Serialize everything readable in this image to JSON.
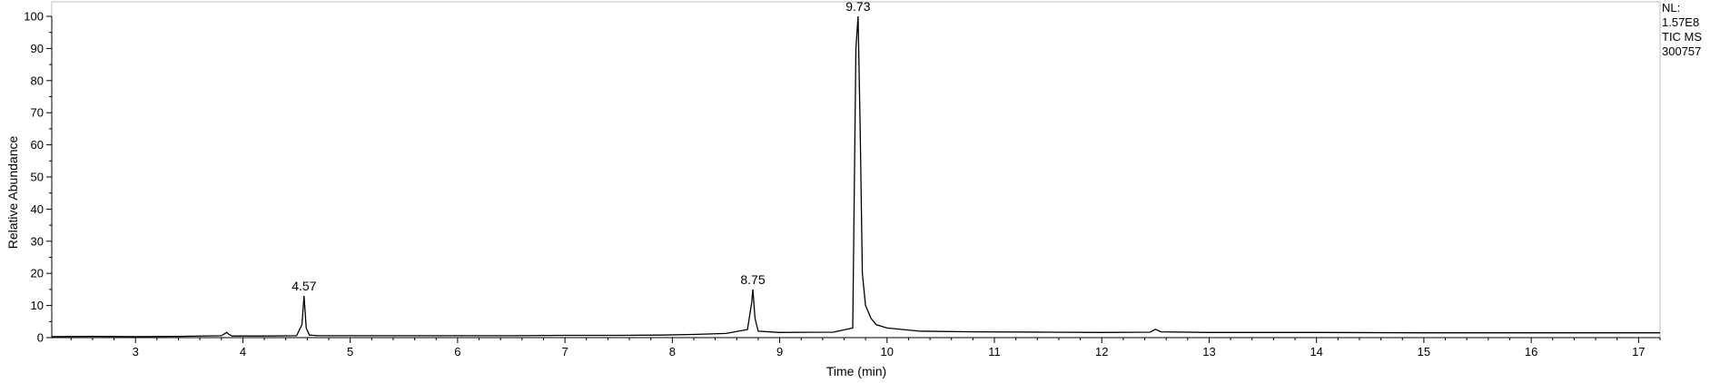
{
  "chart_data": {
    "type": "line",
    "xlabel": "Time (min)",
    "ylabel": "Relative Abundance",
    "xlim": [
      2.22,
      17.2
    ],
    "ylim": [
      0,
      100
    ],
    "x_ticks": [
      3,
      4,
      5,
      6,
      7,
      8,
      9,
      10,
      11,
      12,
      13,
      14,
      15,
      16,
      17
    ],
    "y_ticks": [
      0,
      10,
      20,
      30,
      40,
      50,
      60,
      70,
      80,
      90,
      100
    ],
    "grid": false,
    "series": [
      {
        "x": [
          2.22,
          2.6,
          3.0,
          3.4,
          3.8,
          3.85,
          3.87,
          3.9,
          4.2,
          4.5,
          4.55,
          4.57,
          4.59,
          4.62,
          4.7,
          5.0,
          5.5,
          6.0,
          6.5,
          7.0,
          7.5,
          7.9,
          8.2,
          8.5,
          8.7,
          8.74,
          8.75,
          8.77,
          8.8,
          9.0,
          9.5,
          9.68,
          9.71,
          9.73,
          9.75,
          9.77,
          9.8,
          9.85,
          9.9,
          10.0,
          10.3,
          10.8,
          11.5,
          12.0,
          12.45,
          12.5,
          12.55,
          13.0,
          14.0,
          15.0,
          16.0,
          17.0,
          17.2
        ],
        "y": [
          0.3,
          0.4,
          0.3,
          0.4,
          0.6,
          1.6,
          1.0,
          0.5,
          0.5,
          0.6,
          4.0,
          13.0,
          3.0,
          0.8,
          0.6,
          0.6,
          0.6,
          0.6,
          0.6,
          0.7,
          0.7,
          0.8,
          1.0,
          1.3,
          2.5,
          11.0,
          15.0,
          6.0,
          2.0,
          1.6,
          1.7,
          3.0,
          90.0,
          100,
          65.0,
          20.0,
          10.0,
          6.0,
          4.0,
          3.0,
          2.0,
          1.8,
          1.7,
          1.6,
          1.7,
          2.6,
          1.8,
          1.6,
          1.6,
          1.5,
          1.5,
          1.5,
          1.5
        ]
      }
    ],
    "peak_labels": [
      {
        "x": 4.57,
        "y": 13.0,
        "text": "4.57"
      },
      {
        "x": 8.75,
        "y": 15.0,
        "text": "8.75"
      },
      {
        "x": 9.73,
        "y": 100,
        "text": "9.73"
      }
    ],
    "info_lines": [
      "NL:",
      "1.57E8",
      "TIC  MS",
      "300757"
    ]
  }
}
